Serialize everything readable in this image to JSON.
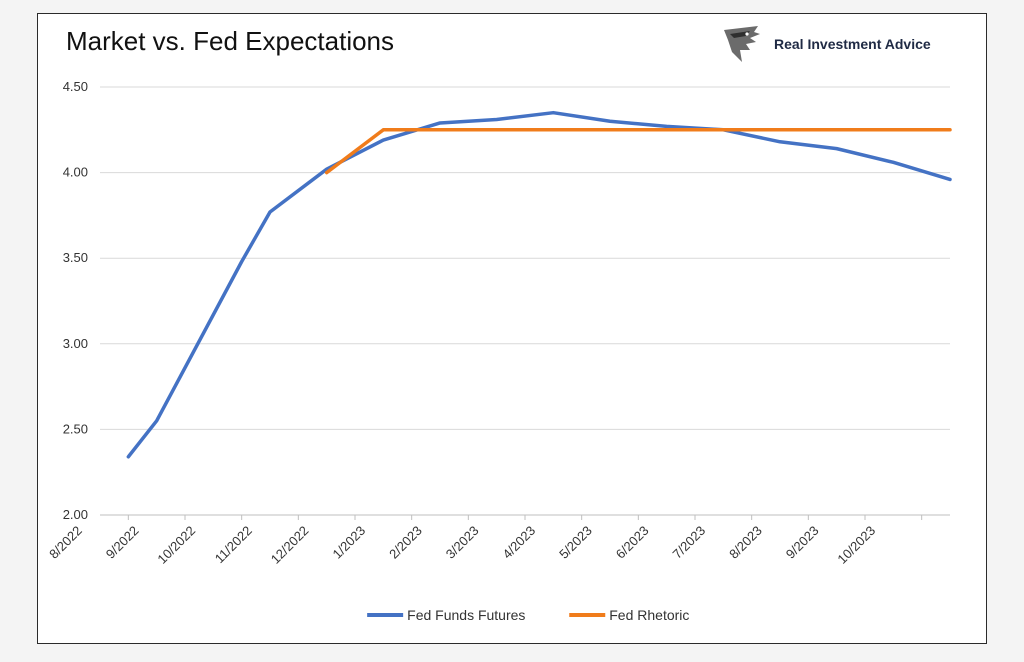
{
  "header": {
    "title": "Market vs. Fed Expectations",
    "brand": "Real Investment Advice",
    "logo_icon": "eagle-head-icon"
  },
  "chart_data": {
    "type": "line",
    "title": "Market vs. Fed Expectations",
    "xlabel": "",
    "ylabel": "",
    "ylim": [
      2.0,
      4.5
    ],
    "yticks": [
      "2.00",
      "2.50",
      "3.00",
      "3.50",
      "4.00",
      "4.50"
    ],
    "categories": [
      "8/2022",
      "9/2022",
      "10/2022",
      "11/2022",
      "12/2022",
      "1/2023",
      "2/2023",
      "3/2023",
      "4/2023",
      "5/2023",
      "6/2023",
      "7/2023",
      "8/2023",
      "9/2023",
      "10/2023"
    ],
    "grid": true,
    "legend_position": "bottom",
    "series": [
      {
        "name": "Fed Funds Futures",
        "color": "#4472C4",
        "points": [
          [
            0,
            2.34
          ],
          [
            0.5,
            2.55
          ],
          [
            2,
            3.48
          ],
          [
            2.5,
            3.77
          ],
          [
            3.5,
            4.02
          ],
          [
            4.5,
            4.19
          ],
          [
            5.5,
            4.29
          ],
          [
            6.5,
            4.31
          ],
          [
            7.5,
            4.35
          ],
          [
            8.5,
            4.3
          ],
          [
            9.5,
            4.27
          ],
          [
            10.5,
            4.25
          ],
          [
            11.5,
            4.18
          ],
          [
            12.5,
            4.14
          ],
          [
            13.5,
            4.06
          ],
          [
            14.5,
            3.96
          ]
        ]
      },
      {
        "name": "Fed Rhetoric",
        "color": "#F07C1B",
        "points": [
          [
            3.5,
            4.0
          ],
          [
            4.5,
            4.25
          ],
          [
            5.5,
            4.25
          ],
          [
            6.5,
            4.25
          ],
          [
            7.5,
            4.25
          ],
          [
            8.5,
            4.25
          ],
          [
            9.5,
            4.25
          ],
          [
            10.5,
            4.25
          ],
          [
            11.5,
            4.25
          ],
          [
            12.5,
            4.25
          ],
          [
            13.5,
            4.25
          ],
          [
            14.5,
            4.25
          ]
        ]
      }
    ]
  }
}
